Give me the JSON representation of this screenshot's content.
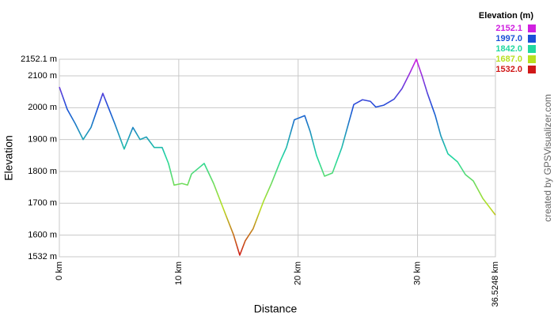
{
  "chart_data": {
    "type": "line",
    "x_label": "Distance",
    "y_label": "Elevation",
    "credit": "created by GPSVisualizer.com",
    "x": [
      0,
      0.66,
      1.33,
      1.99,
      2.65,
      3.64,
      4.64,
      5.43,
      6.16,
      6.76,
      7.29,
      7.95,
      8.61,
      9.14,
      9.61,
      10.27,
      10.74,
      11.07,
      12.13,
      12.92,
      13.92,
      14.58,
      15.11,
      15.57,
      16.23,
      17.1,
      17.76,
      18.55,
      19.02,
      19.68,
      20.55,
      21.01,
      21.54,
      22.21,
      22.87,
      23.66,
      24.66,
      25.39,
      26.05,
      26.51,
      27.18,
      28.04,
      28.7,
      29.37,
      29.9,
      30.36,
      30.83,
      31.49,
      31.95,
      32.55,
      33.35,
      34.01,
      34.67,
      35.47,
      36.5248
    ],
    "series": [
      {
        "name": "Elevation",
        "values": [
          2065,
          1995,
          1950,
          1900,
          1938,
          2045,
          1950,
          1870,
          1938,
          1900,
          1908,
          1875,
          1875,
          1825,
          1757,
          1762,
          1757,
          1792,
          1825,
          1762,
          1665,
          1602,
          1537,
          1582,
          1620,
          1706,
          1762,
          1836,
          1875,
          1962,
          1975,
          1925,
          1850,
          1785,
          1795,
          1875,
          2010,
          2025,
          2020,
          2002,
          2008,
          2027,
          2060,
          2110,
          2152.1,
          2102,
          2045,
          1975,
          1912,
          1855,
          1830,
          1790,
          1770,
          1715,
          1663
        ]
      }
    ],
    "xlim": [
      0,
      36.5248
    ],
    "xticks": [
      {
        "value": 0,
        "label": "0 km"
      },
      {
        "value": 10,
        "label": "10 km"
      },
      {
        "value": 20,
        "label": "20 km"
      },
      {
        "value": 30,
        "label": "30 km"
      },
      {
        "value": 36.5248,
        "label": "36.5248 km"
      }
    ],
    "ylim": [
      1532,
      2152.1
    ],
    "yticks": [
      {
        "value": 1532,
        "label": "1532 m"
      },
      {
        "value": 1600,
        "label": "1600 m"
      },
      {
        "value": 1700,
        "label": "1700 m"
      },
      {
        "value": 1800,
        "label": "1800 m"
      },
      {
        "value": 1900,
        "label": "1900 m"
      },
      {
        "value": 2000,
        "label": "2000 m"
      },
      {
        "value": 2100,
        "label": "2100 m"
      },
      {
        "value": 2152.1,
        "label": "2152.1 m"
      }
    ],
    "grid": true,
    "legend": {
      "title": "Elevation (m)",
      "items": [
        {
          "value": 2152.1,
          "label": "2152.1",
          "color": "#d020e0"
        },
        {
          "value": 1997.0,
          "label": "1997.0",
          "color": "#1a50d8"
        },
        {
          "value": 1842.0,
          "label": "1842.0",
          "color": "#20d8a0"
        },
        {
          "value": 1687.0,
          "label": "1687.0",
          "color": "#b8e020"
        },
        {
          "value": 1532.0,
          "label": "1532.0",
          "color": "#d01818"
        }
      ]
    }
  }
}
